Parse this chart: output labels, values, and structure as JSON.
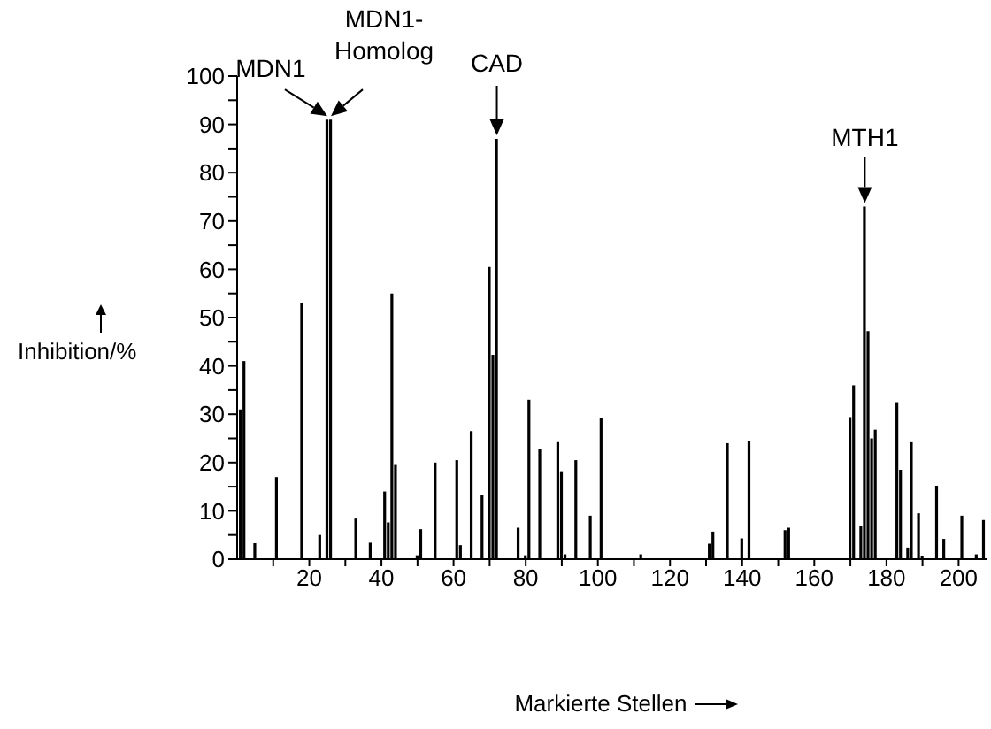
{
  "chart_data": {
    "type": "bar",
    "xlabel": "Markierte Stellen",
    "ylabel": "Inhibition/%",
    "color": "#000000",
    "x": [
      1,
      2,
      5,
      11,
      18,
      23,
      25,
      26,
      33,
      37,
      41,
      42,
      43,
      44,
      50,
      51,
      55,
      61,
      62,
      65,
      68,
      70,
      71,
      72,
      78,
      80,
      81,
      84,
      89,
      90,
      91,
      94,
      98,
      101,
      112,
      131,
      132,
      136,
      140,
      142,
      152,
      153,
      170,
      171,
      173,
      174,
      175,
      176,
      177,
      183,
      184,
      186,
      187,
      189,
      190,
      194,
      196,
      201,
      205,
      207
    ],
    "values": [
      31,
      41,
      3.3,
      17,
      53,
      5,
      91,
      91,
      8.4,
      3.4,
      14,
      7.6,
      55,
      19.5,
      0.8,
      6.2,
      20,
      20.5,
      2.9,
      26.5,
      13.2,
      60.5,
      42.3,
      87,
      6.5,
      0.8,
      33,
      22.8,
      24.2,
      18.2,
      1,
      20.5,
      9,
      29.3,
      1,
      3.2,
      5.7,
      24,
      4.3,
      24.5,
      6,
      6.5,
      29.4,
      36,
      6.9,
      73,
      47.2,
      25,
      26.8,
      32.5,
      18.5,
      2.4,
      24.2,
      9.5,
      0.6,
      15.2,
      4.2,
      9,
      1,
      8.1
    ],
    "xlim": [
      0,
      208
    ],
    "xticks": [
      {
        "value": 10,
        "label": null
      },
      20,
      {
        "value": 30,
        "label": null
      },
      40,
      {
        "value": 50,
        "label": null
      },
      60,
      {
        "value": 70,
        "label": null
      },
      80,
      {
        "value": 90,
        "label": null
      },
      100,
      {
        "value": 110,
        "label": null
      },
      120,
      {
        "value": 130,
        "label": null
      },
      140,
      {
        "value": 150,
        "label": null
      },
      160,
      {
        "value": 170,
        "label": null
      },
      180,
      {
        "value": 190,
        "label": null
      },
      200
    ],
    "ylim": [
      0,
      100
    ],
    "yticks": [
      0,
      {
        "value": 5,
        "label": null
      },
      10,
      {
        "value": 15,
        "label": null
      },
      20,
      {
        "value": 25,
        "label": null
      },
      30,
      {
        "value": 35,
        "label": null
      },
      40,
      {
        "value": 45,
        "label": null
      },
      50,
      {
        "value": 55,
        "label": null
      },
      60,
      {
        "value": 65,
        "label": null
      },
      70,
      {
        "value": 75,
        "label": null
      },
      80,
      {
        "value": 85,
        "label": null
      },
      90,
      {
        "value": 95,
        "label": null
      },
      100
    ],
    "annotations": [
      {
        "text": "MDN1",
        "x": 25,
        "y": 91
      },
      {
        "text": "MDN1-\nHomolog",
        "x": 26,
        "y": 91
      },
      {
        "text": "CAD",
        "x": 72,
        "y": 87
      },
      {
        "text": "MTH1",
        "x": 174,
        "y": 73
      }
    ]
  }
}
